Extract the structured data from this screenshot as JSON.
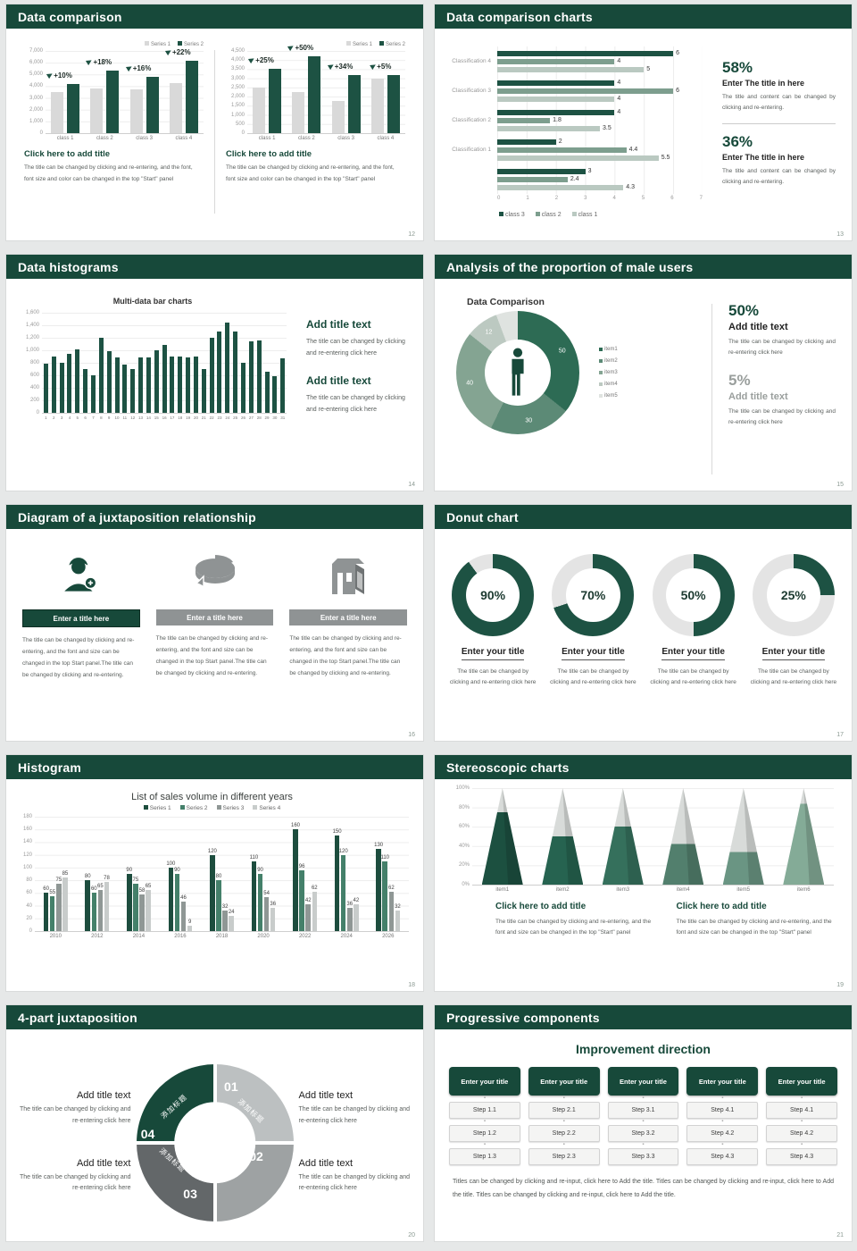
{
  "colors": {
    "brand_green": "#17493a",
    "bar_dark_green": "#1d5243",
    "bar_gray": "#d9d9d9",
    "sage_mid": "#7d9e8e",
    "sage_light": "#bac9c1",
    "s7_series": [
      "#1d4d3e",
      "#44806a",
      "#8f9795",
      "#c8cccb"
    ],
    "donut_slices": [
      "#2d6b54",
      "#5c8a76",
      "#84a492",
      "#bcc9c1",
      "#dfe3e0"
    ],
    "ring_green": "#1d5243",
    "ring_track": "#e4e4e4",
    "quad_colors": [
      "#bcc0c1",
      "#9ea2a3",
      "#636769",
      "#17493a"
    ],
    "pyramid_greens": [
      "#1c5040",
      "#266350",
      "#35705c",
      "#527f6d",
      "#6a9583",
      "#84ab97"
    ],
    "pyramid_top": "#d8dbd9"
  },
  "slides": [
    {
      "number": "12",
      "title": "Data comparison",
      "panels": [
        {
          "legend": [
            "Series 1",
            "Series 2"
          ],
          "click_title": "Click here to add title",
          "body": "The title can be changed by clicking and re-entering, and the font, font size and color can be changed in the top \"Start\" panel",
          "chart_data": {
            "type": "bar",
            "categories": [
              "class 1",
              "class 2",
              "class 3",
              "class 4"
            ],
            "series": [
              {
                "name": "Series 1",
                "values": [
                  3500,
                  3800,
                  3700,
                  4300
                ]
              },
              {
                "name": "Series 2",
                "values": [
                  4200,
                  5300,
                  4800,
                  6200
                ]
              }
            ],
            "annotations": [
              "+10%",
              "+18%",
              "+16%",
              "+22%"
            ],
            "ylim": [
              0,
              7000
            ],
            "ytick": 1000
          }
        },
        {
          "legend": [
            "Series 1",
            "Series 2"
          ],
          "click_title": "Click here to add title",
          "body": "The title can be changed by clicking and re-entering, and the font, font size and color can be changed in the top \"Start\" panel",
          "chart_data": {
            "type": "bar",
            "categories": [
              "class 1",
              "class 2",
              "class 3",
              "class 4"
            ],
            "series": [
              {
                "name": "Series 1",
                "values": [
                  2500,
                  2250,
                  1750,
                  3000
                ]
              },
              {
                "name": "Series 2",
                "values": [
                  3500,
                  4200,
                  3200,
                  3200
                ]
              }
            ],
            "annotations": [
              "+25%",
              "+50%",
              "+34%",
              "+5%"
            ],
            "ylim": [
              0,
              4500
            ],
            "ytick": 500
          }
        }
      ]
    },
    {
      "number": "13",
      "title": "Data comparison charts",
      "chart_data": {
        "type": "bar-horizontal",
        "groups": [
          "Classification 4",
          "Classification 3",
          "Classification 2",
          "Classification 1",
          ""
        ],
        "series": [
          {
            "name": "class 3",
            "values": [
              6,
              4,
              4,
              2,
              3
            ]
          },
          {
            "name": "class 2",
            "values": [
              4,
              6,
              1.8,
              4.4,
              2.4
            ]
          },
          {
            "name": "class 1",
            "values": [
              5,
              4,
              3.5,
              5.5,
              4.3
            ]
          }
        ],
        "xlim": [
          0,
          7
        ],
        "xtick": 1
      },
      "stats": [
        {
          "pct": "58%",
          "title": "Enter The title in here",
          "body": "The title and content can be changed by clicking and re-entering."
        },
        {
          "pct": "36%",
          "title": "Enter The title in here",
          "body": "The title and content can be changed by clicking and re-entering."
        }
      ]
    },
    {
      "number": "14",
      "title": "Data histograms",
      "chart_data": {
        "type": "bar",
        "title": "Multi-data bar charts",
        "x_start": 1,
        "values": [
          790,
          900,
          800,
          950,
          1020,
          700,
          600,
          1200,
          980,
          890,
          770,
          700,
          890,
          890,
          1000,
          1090,
          900,
          900,
          880,
          900,
          700,
          1200,
          1300,
          1450,
          1300,
          800,
          1150,
          1160,
          660,
          590,
          870
        ],
        "ylim": [
          0,
          1600
        ],
        "ytick": 200
      },
      "blocks": [
        {
          "title": "Add title text",
          "body": "The title can be changed by clicking and re-entering click here"
        },
        {
          "title": "Add title text",
          "body": "The title can be changed by clicking and re-entering click here"
        }
      ]
    },
    {
      "number": "15",
      "title": "Analysis of the proportion of male users",
      "chart_data": {
        "type": "donut",
        "title": "Data Comparison",
        "labels": [
          "item1",
          "item2",
          "item3",
          "item4",
          "item5"
        ],
        "values": [
          50,
          30,
          40,
          12,
          8
        ],
        "value_labels": [
          "50",
          "30",
          "40",
          "12",
          ""
        ]
      },
      "stats": [
        {
          "pct": "50%",
          "title": "Add title text",
          "body": "The title can be changed by clicking and re-entering click here"
        },
        {
          "pct": "5%",
          "title": "Add title text",
          "body": "The title can be changed by clicking and re-entering click here"
        }
      ]
    },
    {
      "number": "16",
      "title": "Diagram of a juxtaposition relationship",
      "columns": [
        {
          "icon": "nurse-plus-icon",
          "bar": "Enter a title here",
          "body": "The title can be changed by clicking and re-entering, and the font and size can be changed in the top Start panel.The title can be changed by clicking and re-entering."
        },
        {
          "icon": "pie-3d-icon",
          "bar": "Enter a title here",
          "body": "The title can be changed by clicking and re-entering, and the font and size can be changed in the top Start panel.The title can be changed by clicking and re-entering."
        },
        {
          "icon": "building-icon",
          "bar": "Enter a title here",
          "body": "The title can be changed by clicking and re-entering, and the font and size can be changed in the top Start panel.The title can be changed by clicking and re-entering."
        }
      ]
    },
    {
      "number": "17",
      "title": "Donut chart",
      "chart_data": {
        "type": "donut-rings",
        "values": [
          90,
          70,
          50,
          25
        ]
      },
      "items": [
        {
          "pct": "90%",
          "title": "Enter your title",
          "body": "The title can be changed by clicking and re-entering click here"
        },
        {
          "pct": "70%",
          "title": "Enter your title",
          "body": "The title can be changed by clicking and re-entering click here"
        },
        {
          "pct": "50%",
          "title": "Enter your title",
          "body": "The title can be changed by clicking and re-entering click here"
        },
        {
          "pct": "25%",
          "title": "Enter your title",
          "body": "The title can be changed by clicking and re-entering click here"
        }
      ]
    },
    {
      "number": "18",
      "title": "Histogram",
      "chart_data": {
        "type": "bar",
        "title": "List of sales volume in different years",
        "categories": [
          "2010",
          "2012",
          "2014",
          "2016",
          "2018",
          "2020",
          "2022",
          "2024",
          "2026"
        ],
        "series": [
          {
            "name": "Series 1",
            "values": [
              60,
              80,
              90,
              100,
              120,
              110,
              160,
              150,
              130
            ]
          },
          {
            "name": "Series 2",
            "values": [
              55,
              60,
              75,
              90,
              80,
              90,
              96,
              120,
              110
            ]
          },
          {
            "name": "Series 3",
            "values": [
              75,
              65,
              58,
              46,
              32,
              54,
              42,
              36,
              62
            ]
          },
          {
            "name": "Series 4",
            "values": [
              85,
              78,
              65,
              9,
              24,
              36,
              62,
              42,
              32
            ]
          }
        ],
        "ylim": [
          0,
          180
        ],
        "ytick": 20
      }
    },
    {
      "number": "19",
      "title": "Stereoscopic charts",
      "chart_data": {
        "type": "pyramid",
        "categories": [
          "item1",
          "item2",
          "item3",
          "item4",
          "item5",
          "item6"
        ],
        "values_pct": [
          75,
          50,
          60,
          42,
          34,
          84
        ],
        "ylim": [
          0,
          100
        ],
        "ytick": 20
      },
      "blocks": [
        {
          "title": "Click here to add title",
          "body": "The title can be changed by clicking and re-entering, and the font and size can be changed in the top \"Start\" panel"
        },
        {
          "title": "Click here to add title",
          "body": "The title can be changed by clicking and re-entering, and the font and size can be changed in the top \"Start\" panel"
        }
      ]
    },
    {
      "number": "20",
      "title": "4-part juxtaposition",
      "ring": {
        "segments": [
          {
            "num": "01",
            "label": "添加标题"
          },
          {
            "num": "02",
            "label": "添加标题"
          },
          {
            "num": "03",
            "label": "添加标题"
          },
          {
            "num": "04",
            "label": "添加标题"
          }
        ]
      },
      "blocks": [
        {
          "title": "Add title text",
          "body": "The title can be changed by clicking and re-entering click here"
        },
        {
          "title": "Add title text",
          "body": "The title can be changed by clicking and re-entering click here"
        },
        {
          "title": "Add title text",
          "body": "The title can be changed by clicking and re-entering click here"
        },
        {
          "title": "Add title text",
          "body": "The title can be changed by clicking and re-entering click here"
        }
      ]
    },
    {
      "number": "21",
      "title": "Progressive components",
      "heading": "Improvement direction",
      "columns": [
        {
          "button": "Enter your title",
          "steps": [
            "Step 1.1",
            "Step 1.2",
            "Step 1.3"
          ]
        },
        {
          "button": "Enter your title",
          "steps": [
            "Step 2.1",
            "Step 2.2",
            "Step 2.3"
          ]
        },
        {
          "button": "Enter your title",
          "steps": [
            "Step 3.1",
            "Step 3.2",
            "Step 3.3"
          ]
        },
        {
          "button": "Enter your title",
          "steps": [
            "Step 4.1",
            "Step 4.2",
            "Step 4.3"
          ]
        },
        {
          "button": "Enter your title",
          "steps": [
            "Step 4.1",
            "Step 4.2",
            "Step 4.3"
          ]
        }
      ],
      "footer": "Titles can be changed by clicking and re-input, click here to Add the title. Titles can be changed by clicking and re-input, click here to Add the title. Titles can be changed by clicking and re-input, click here to Add the title."
    }
  ]
}
